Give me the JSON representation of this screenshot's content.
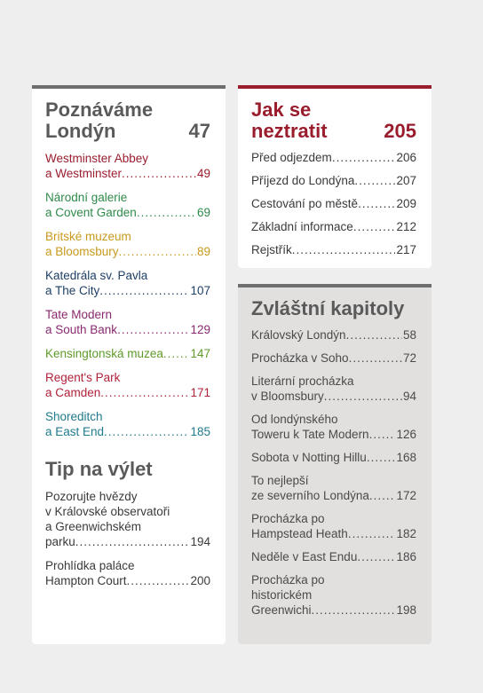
{
  "left": {
    "heading_line1": "Poznáváme",
    "heading_line2": "Londýn",
    "heading_page": "47",
    "entries": [
      {
        "lines": [
          "Westminster Abbey"
        ],
        "last": "a Westminster",
        "page": "49",
        "color": "#9a1d2e"
      },
      {
        "lines": [
          "Národní galerie"
        ],
        "last": "a Covent Garden",
        "page": "69",
        "color": "#2e8a4a"
      },
      {
        "lines": [
          "Britské muzeum"
        ],
        "last": "a Bloomsbury",
        "page": "89",
        "color": "#c89a1e"
      },
      {
        "lines": [
          "Katedrála sv. Pavla"
        ],
        "last": "a The City",
        "page": "107",
        "color": "#1e3f66"
      },
      {
        "lines": [
          "Tate Modern"
        ],
        "last": "a South Bank",
        "page": "129",
        "color": "#8a2a6e"
      },
      {
        "lines": [],
        "last": "Kensingtonská muzea",
        "page": "147",
        "color": "#5f9a2a"
      },
      {
        "lines": [
          "Regent's Park"
        ],
        "last": "a Camden",
        "page": "171",
        "color": "#b2223a"
      },
      {
        "lines": [
          "Shoreditch"
        ],
        "last": "a East End",
        "page": "185",
        "color": "#1f7a8c"
      }
    ],
    "trip_heading": "Tip na výlet",
    "trip_entries": [
      {
        "lines": [
          "Pozorujte hvězdy",
          "v Královské observatoři",
          "a Greenwichském"
        ],
        "last": "parku",
        "page": "194"
      },
      {
        "lines": [
          "Prohlídka paláce"
        ],
        "last": "Hampton Court",
        "page": "200"
      }
    ],
    "trip_color": "#3a3a3a"
  },
  "right_top": {
    "heading_line1": "Jak se",
    "heading_line2": "neztratit",
    "heading_page": "205",
    "entries": [
      {
        "last": "Před odjezdem",
        "page": "206"
      },
      {
        "last": "Příjezd do Londýna",
        "page": "207"
      },
      {
        "last": "Cestování po městě",
        "page": "209"
      },
      {
        "last": "Základní informace",
        "page": "212"
      },
      {
        "last": "Rejstřík",
        "page": "217"
      }
    ]
  },
  "right_bottom": {
    "heading": "Zvláštní kapitoly",
    "entries": [
      {
        "lines": [],
        "last": "Královský Londýn",
        "page": "58"
      },
      {
        "lines": [],
        "last": "Procházka v Soho",
        "page": "72"
      },
      {
        "lines": [
          "Literární procházka"
        ],
        "last": "v Bloomsbury",
        "page": "94"
      },
      {
        "lines": [
          "Od londýnského"
        ],
        "last": "Toweru k Tate Modern",
        "page": "126"
      },
      {
        "lines": [],
        "last": "Sobota v Notting Hillu",
        "page": "168"
      },
      {
        "lines": [
          "To nejlepší"
        ],
        "last": "ze severního Londýna",
        "page": "172"
      },
      {
        "lines": [
          "Procházka po"
        ],
        "last": "Hampstead Heath",
        "page": "182"
      },
      {
        "lines": [],
        "last": "Neděle v East Endu",
        "page": "186"
      },
      {
        "lines": [
          "Procházka po",
          "historickém"
        ],
        "last": "Greenwichi",
        "page": "198"
      }
    ]
  }
}
